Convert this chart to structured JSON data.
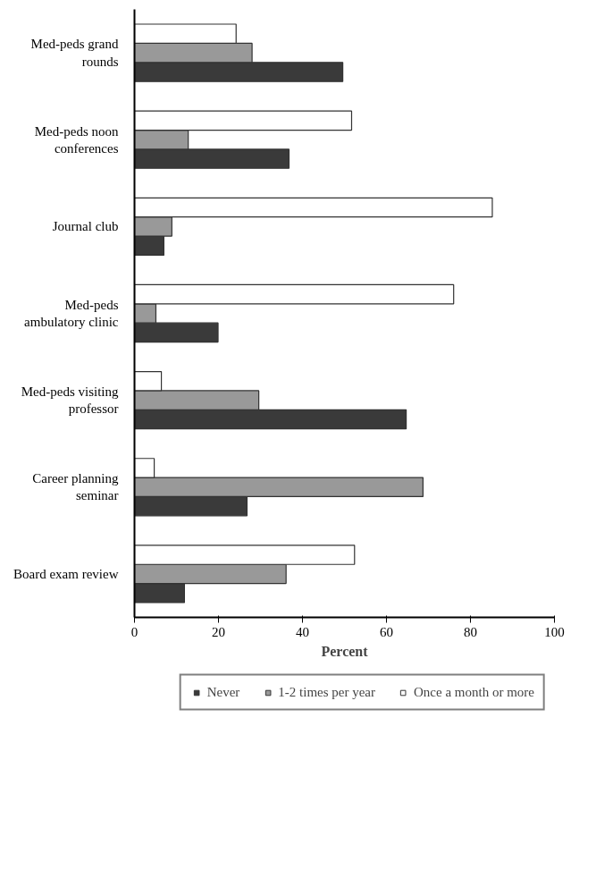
{
  "chart_data": {
    "type": "bar",
    "orientation": "horizontal",
    "xlabel": "Percent",
    "categories": [
      "Med-peds grand rounds",
      "Med-peds noon conferences",
      "Journal club",
      "Med-peds ambulatory clinic",
      "Med-peds visiting professor",
      "Career planning seminar",
      "Board exam review"
    ],
    "series": [
      {
        "name": "Never",
        "color": "#3a3a3a",
        "values": [
          49.6,
          36.8,
          7.0,
          19.9,
          64.7,
          26.8,
          11.9
        ]
      },
      {
        "name": "1-2 times per year",
        "color": "#999999",
        "values": [
          28.0,
          12.8,
          8.9,
          5.1,
          29.6,
          68.7,
          36.1
        ]
      },
      {
        "name": "Once a month or more",
        "color": "#ffffff",
        "values": [
          24.2,
          51.7,
          85.2,
          76.0,
          6.4,
          4.7,
          52.4
        ]
      }
    ],
    "xlim": [
      0,
      100
    ],
    "xticks": [
      0,
      20,
      40,
      60,
      80,
      100
    ],
    "grid": false,
    "legend": "bottom"
  }
}
